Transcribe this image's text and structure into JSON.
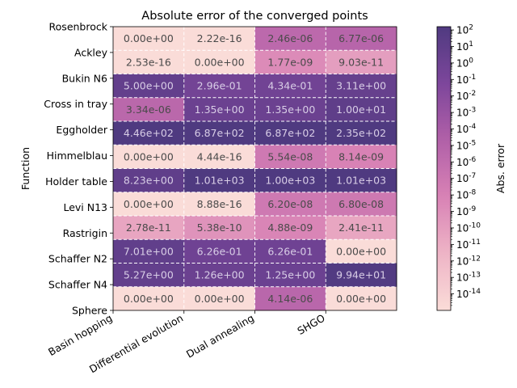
{
  "chart_data": {
    "type": "heatmap",
    "title": "Absolute error of the converged points",
    "xlabel": "",
    "ylabel": "Function",
    "columns": [
      "Basin hopping",
      "Differential evolution",
      "Dual annealing",
      "SHGO"
    ],
    "y_tick_labels": [
      "Rosenbrock",
      "Ackley",
      "Bukin N6",
      "Cross in tray",
      "Eggholder",
      "Himmelblau",
      "Holder table",
      "Levi N13",
      "Rastrigin",
      "Schaffer N2",
      "Schaffer N4",
      "Sphere"
    ],
    "cell_labels": [
      [
        "0.00e+00",
        "2.22e-16",
        "2.46e-06",
        "6.77e-06"
      ],
      [
        "2.53e-16",
        "0.00e+00",
        "1.77e-09",
        "9.03e-11"
      ],
      [
        "5.00e+00",
        "2.96e-01",
        "4.34e-01",
        "3.11e+00"
      ],
      [
        "3.34e-06",
        "1.35e+00",
        "1.35e+00",
        "1.00e+01"
      ],
      [
        "4.46e+02",
        "6.87e+02",
        "6.87e+02",
        "2.35e+02"
      ],
      [
        "0.00e+00",
        "4.44e-16",
        "5.54e-08",
        "8.14e-09"
      ],
      [
        "8.23e+00",
        "1.01e+03",
        "1.00e+03",
        "1.01e+03"
      ],
      [
        "0.00e+00",
        "8.88e-16",
        "6.20e-08",
        "6.80e-08"
      ],
      [
        "2.78e-11",
        "5.38e-10",
        "4.88e-09",
        "2.41e-11"
      ],
      [
        "7.01e+00",
        "6.26e-01",
        "6.26e-01",
        "0.00e+00"
      ],
      [
        "5.27e+00",
        "1.26e+00",
        "1.25e+00",
        "9.94e+01"
      ],
      [
        "0.00e+00",
        "0.00e+00",
        "4.14e-06",
        "0.00e+00"
      ]
    ],
    "values": [
      [
        0,
        2.22e-16,
        2.46e-06,
        6.77e-06
      ],
      [
        2.53e-16,
        0,
        1.77e-09,
        9.03e-11
      ],
      [
        5.0,
        0.296,
        0.434,
        3.11
      ],
      [
        3.34e-06,
        1.35,
        1.35,
        10.0
      ],
      [
        446,
        687,
        687,
        235
      ],
      [
        0,
        4.44e-16,
        5.54e-08,
        8.14e-09
      ],
      [
        8.23,
        1010,
        1000,
        1010
      ],
      [
        0,
        8.88e-16,
        6.2e-08,
        6.8e-08
      ],
      [
        2.78e-11,
        5.38e-10,
        4.88e-09,
        2.41e-11
      ],
      [
        7.01,
        0.626,
        0.626,
        0
      ],
      [
        5.27,
        1.26,
        1.25,
        99.4
      ],
      [
        0,
        0,
        4.14e-06,
        0
      ]
    ],
    "color_scale": "log",
    "colorbar": {
      "label": "Abs. error",
      "range_exponents": [
        -15,
        2.2
      ],
      "tick_labels": [
        "10^2",
        "10^1",
        "10^0",
        "10^-1",
        "10^-2",
        "10^-3",
        "10^-4",
        "10^-5",
        "10^-6",
        "10^-7",
        "10^-8",
        "10^-9",
        "10^-10",
        "10^-11",
        "10^-12",
        "10^-13",
        "10^-14"
      ],
      "tick_exponents": [
        2,
        1,
        0,
        -1,
        -2,
        -3,
        -4,
        -5,
        -6,
        -7,
        -8,
        -9,
        -10,
        -11,
        -12,
        -13,
        -14
      ],
      "colors": [
        "#fadcd8",
        "#eeb4c6",
        "#d882b5",
        "#b160a8",
        "#7d469b",
        "#4f3a80"
      ]
    },
    "grid": true,
    "legend": "colorbar-right"
  }
}
